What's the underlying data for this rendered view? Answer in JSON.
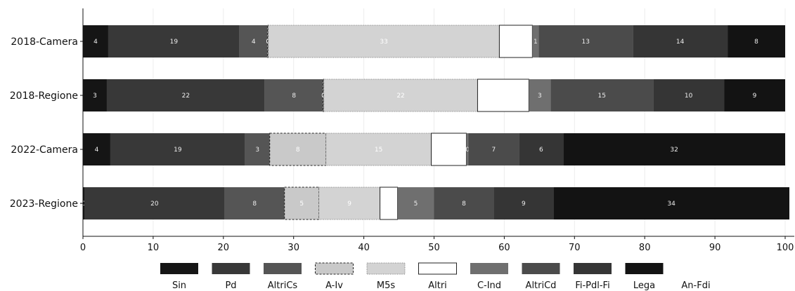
{
  "chart_data": {
    "type": "bar",
    "orientation": "horizontal",
    "stacked": true,
    "categories": [
      "2018-Camera",
      "2018-Regione",
      "2022-Camera",
      "2023-Regione"
    ],
    "xlim": [
      0,
      100
    ],
    "xticks": [
      0,
      10,
      20,
      30,
      40,
      50,
      60,
      70,
      80,
      90,
      100
    ],
    "grid": true,
    "legend_position": "bottom",
    "series": [
      {
        "name": "Sin",
        "color": "#151515",
        "values": [
          3.6,
          3.4,
          3.9,
          0.2
        ]
      },
      {
        "name": "Pd",
        "color": "#383838",
        "values": [
          18.7,
          22.5,
          19.2,
          20.0
        ]
      },
      {
        "name": "AltriCs",
        "color": "#555555",
        "values": [
          4.0,
          8.3,
          3.5,
          8.5
        ]
      },
      {
        "name": "A-Iv",
        "color": "#c9c9c9",
        "values": [
          0.1,
          0.1,
          8.0,
          4.9
        ],
        "border": "dashed"
      },
      {
        "name": "M5s",
        "color": "#d3d3d3",
        "values": [
          32.9,
          21.9,
          15.0,
          8.7
        ],
        "border": "dotted"
      },
      {
        "name": "Altri",
        "color": "#ffffff",
        "values": [
          4.7,
          7.3,
          5.0,
          2.5
        ]
      },
      {
        "name": "C-Ind",
        "color": "#6f6f6f",
        "values": [
          0.9,
          3.1,
          0.3,
          5.2
        ]
      },
      {
        "name": "AltriCd",
        "color": "#4b4b4b",
        "values": [
          13.4,
          14.6,
          7.2,
          8.5
        ]
      },
      {
        "name": "Fi-Pdl-Fi",
        "color": "#353535",
        "values": [
          13.5,
          10.1,
          6.3,
          8.5
        ]
      },
      {
        "name": "Lega",
        "color": "#131313",
        "values": [
          8.2,
          8.7,
          31.6,
          33.6
        ]
      },
      {
        "name": "An-Fdi",
        "color": "#131313",
        "values": [
          0,
          0,
          0,
          0
        ]
      }
    ],
    "data_labels": [
      [
        "4",
        "19",
        "4",
        "0",
        "33",
        "",
        "1",
        "13",
        "14",
        "8",
        ""
      ],
      [
        "3",
        "22",
        "8",
        "0",
        "22",
        "",
        "3",
        "15",
        "10",
        "9",
        ""
      ],
      [
        "4",
        "19",
        "3",
        "8",
        "15",
        "",
        "0",
        "7",
        "6",
        "32",
        ""
      ],
      [
        "0",
        "20",
        "8",
        "5",
        "9",
        "",
        "5",
        "8",
        "9",
        "34",
        ""
      ]
    ],
    "title": "",
    "xlabel": "",
    "ylabel": ""
  }
}
